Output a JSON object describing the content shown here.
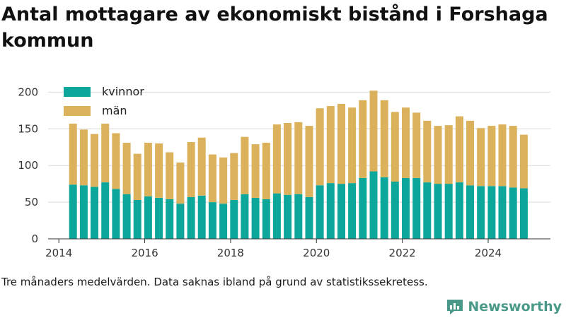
{
  "title": "Antal mottagare av ekonomiskt bistånd i Forshaga kommun",
  "caption": "Tre månaders medelvärden. Data saknas ibland på grund av statistikssekretess.",
  "brand": {
    "name": "Newsworthy",
    "color": "#4a9988"
  },
  "colors": {
    "kvinnor": "#0ca69a",
    "man": "#dcb15c"
  },
  "chart_data": {
    "type": "bar",
    "stacked": true,
    "legend_position": "top-left",
    "grid": true,
    "ylim": [
      0,
      210
    ],
    "yticks": [
      0,
      50,
      100,
      150,
      200
    ],
    "xticks": [
      2014,
      2016,
      2018,
      2020,
      2022,
      2024
    ],
    "x_range": [
      2013.75,
      2025.45
    ],
    "x": [
      2014.33,
      2014.58,
      2014.83,
      2015.08,
      2015.33,
      2015.58,
      2015.83,
      2016.08,
      2016.33,
      2016.58,
      2016.83,
      2017.08,
      2017.33,
      2017.58,
      2017.83,
      2018.08,
      2018.33,
      2018.58,
      2018.83,
      2019.08,
      2019.33,
      2019.58,
      2019.83,
      2020.08,
      2020.33,
      2020.58,
      2020.83,
      2021.08,
      2021.33,
      2021.58,
      2021.83,
      2022.08,
      2022.33,
      2022.58,
      2022.83,
      2023.08,
      2023.33,
      2023.58,
      2023.83,
      2024.08,
      2024.33,
      2024.58,
      2024.83
    ],
    "series": [
      {
        "name": "kvinnor",
        "values": [
          74,
          73,
          71,
          77,
          68,
          61,
          53,
          58,
          56,
          54,
          48,
          57,
          59,
          50,
          48,
          53,
          61,
          56,
          54,
          62,
          60,
          61,
          57,
          73,
          76,
          75,
          76,
          83,
          92,
          84,
          78,
          83,
          83,
          77,
          75,
          75,
          77,
          73,
          72,
          72,
          72,
          70,
          69
        ]
      },
      {
        "name": "män",
        "values": [
          83,
          76,
          72,
          80,
          76,
          70,
          63,
          73,
          74,
          64,
          56,
          75,
          79,
          65,
          63,
          64,
          78,
          73,
          77,
          94,
          98,
          98,
          97,
          105,
          105,
          109,
          103,
          106,
          110,
          105,
          95,
          96,
          89,
          84,
          79,
          80,
          90,
          88,
          79,
          82,
          84,
          84,
          73
        ]
      }
    ]
  }
}
